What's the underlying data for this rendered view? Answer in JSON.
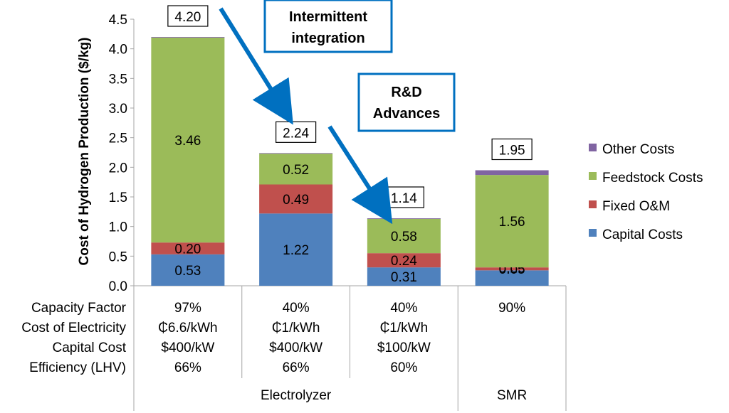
{
  "chart_data": {
    "type": "bar",
    "stacked": true,
    "ylabel": "Cost of Hydrogen Production ($/kg)",
    "ylim": [
      0,
      4.5
    ],
    "yticks": [
      "0.0",
      "0.5",
      "1.0",
      "1.5",
      "2.0",
      "2.5",
      "3.0",
      "3.5",
      "4.0",
      "4.5"
    ],
    "series": [
      {
        "name": "Capital Costs",
        "color": "#4f81bd",
        "values": [
          0.53,
          1.22,
          0.31,
          0.26
        ],
        "labels": [
          "0.53",
          "1.22",
          "0.31",
          "0.26"
        ]
      },
      {
        "name": "Fixed O&M",
        "color": "#c0504d",
        "values": [
          0.2,
          0.49,
          0.24,
          0.05
        ],
        "labels": [
          "0.20",
          "0.49",
          "0.24",
          "0.05"
        ]
      },
      {
        "name": "Feedstock Costs",
        "color": "#9bbb59",
        "values": [
          3.46,
          0.52,
          0.58,
          1.56
        ],
        "labels": [
          "3.46",
          "0.52",
          "0.58",
          "1.56"
        ]
      },
      {
        "name": "Other Costs",
        "color": "#8064a2",
        "values": [
          0.01,
          0.01,
          0.01,
          0.08
        ],
        "labels": [
          "",
          "",
          "",
          ""
        ]
      }
    ],
    "totals": [
      "4.20",
      "2.24",
      "1.14",
      "1.95"
    ],
    "total_values": [
      4.2,
      2.24,
      1.14,
      1.95
    ],
    "legend": {
      "position": "right",
      "order": [
        "Other Costs",
        "Feedstock Costs",
        "Fixed O&M",
        "Capital Costs"
      ]
    },
    "table": {
      "row_labels": [
        "Capacity Factor",
        "Cost of Electricity",
        "Capital Cost",
        "Efficiency (LHV)"
      ],
      "columns": [
        [
          "97%",
          "₵6.6/kWh",
          "$400/kW",
          "66%"
        ],
        [
          "40%",
          "₵1/kWh",
          "$400/kW",
          "66%"
        ],
        [
          "40%",
          "₵1/kWh",
          "$100/kW",
          "60%"
        ],
        [
          "90%",
          "",
          "",
          ""
        ]
      ],
      "groups": [
        {
          "label": "Electrolyzer",
          "columns": [
            0,
            1,
            2
          ]
        },
        {
          "label": "SMR",
          "columns": [
            3
          ]
        }
      ]
    },
    "annotations": [
      {
        "text_lines": [
          "Intermittent",
          "integration"
        ],
        "from": "4.20",
        "to": "2.24"
      },
      {
        "text_lines": [
          "R&D",
          "Advances"
        ],
        "from": "2.24",
        "to": "1.14"
      }
    ],
    "grid": false,
    "accent_color": "#0070c0"
  }
}
